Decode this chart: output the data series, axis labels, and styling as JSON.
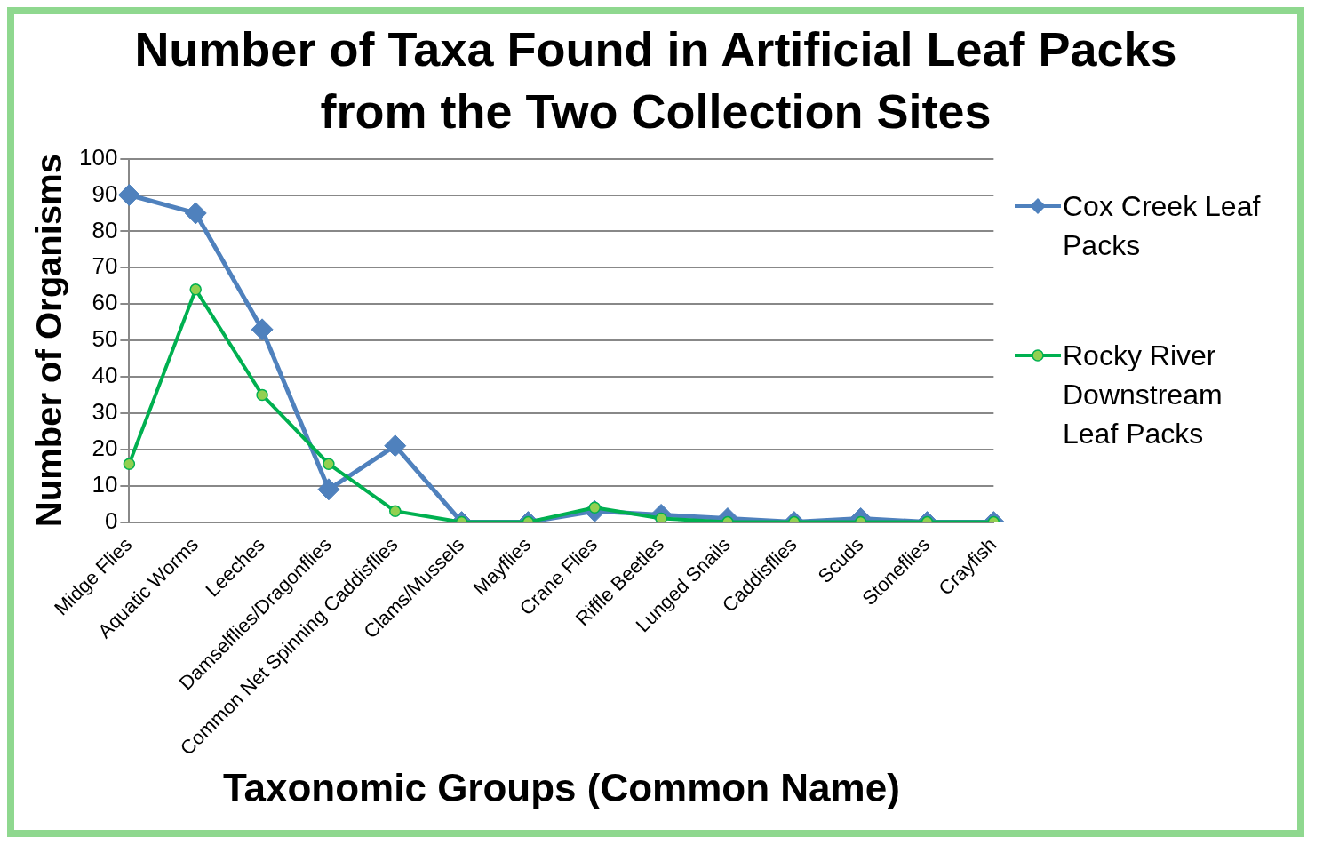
{
  "chart_data": {
    "type": "line",
    "title": "Number of Taxa Found in Artificial Leaf Packs from the Two Collection Sites",
    "xlabel": "Taxonomic Groups (Common Name)",
    "ylabel": "Number of Organisms",
    "categories": [
      "Midge Flies",
      "Aquatic Worms",
      "Leeches",
      "Damselflies/Dragonflies",
      "Common Net Spinning Caddisflies",
      "Clams/Mussels",
      "Mayflies",
      "Crane Flies",
      "Riffle Beetles",
      "Lunged Snails",
      "Caddisflies",
      "Scuds",
      "Stoneflies",
      "Crayfish"
    ],
    "series": [
      {
        "name": "Cox Creek Leaf Packs",
        "color": "#4f81bd",
        "marker": "diamond",
        "values": [
          90,
          85,
          53,
          9,
          21,
          0,
          0,
          3,
          2,
          1,
          0,
          1,
          0,
          0
        ]
      },
      {
        "name": "Rocky River Downstream Leaf Packs",
        "color": "#00b050",
        "marker": "circle",
        "values": [
          16,
          64,
          35,
          16,
          3,
          0,
          0,
          4,
          1,
          0,
          0,
          0,
          0,
          0
        ]
      }
    ],
    "ylim": [
      0,
      100
    ],
    "yticks": [
      0,
      10,
      20,
      30,
      40,
      50,
      60,
      70,
      80,
      90,
      100
    ],
    "grid": "y",
    "legend": "right"
  }
}
